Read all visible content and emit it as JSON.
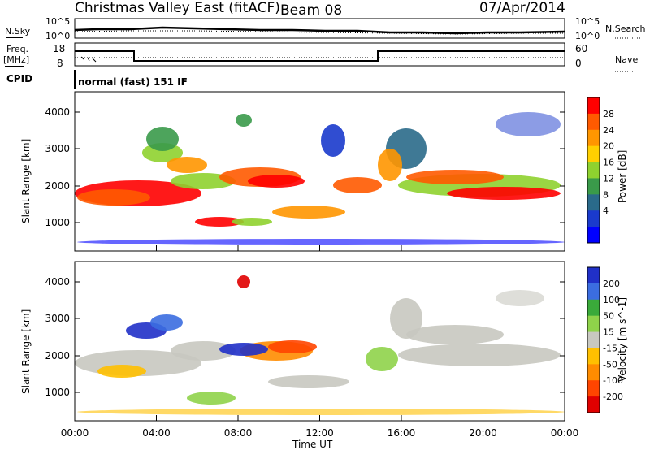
{
  "header": {
    "title": "Christmas Valley East (fitACF)",
    "beam": "Beam 08",
    "date": "07/Apr/2014"
  },
  "top_panels": {
    "nsky_label": "N.Sky",
    "nsearch_label": "N.Search",
    "noise_ticks": [
      "10^5",
      "10^0"
    ],
    "freq_label_1": "Freq.",
    "freq_label_2": "[MHz]",
    "freq_ticks": [
      "18",
      "8"
    ],
    "nave_label": "Nave",
    "nave_ticks": [
      "60",
      "0"
    ],
    "cpid_label": "CPID",
    "cpid_text": "normal (fast) 151 IF"
  },
  "chart_data": [
    {
      "type": "heatmap",
      "name": "power",
      "ylabel": "Slant Range [km]",
      "yticks": [
        "4000",
        "3000",
        "2000",
        "1000"
      ],
      "colorbar_label": "Power [dB]",
      "colorbar_ticks": [
        "28",
        "24",
        "20",
        "16",
        "12",
        "8",
        "4"
      ],
      "colors": [
        "#ff0000",
        "#ff5a00",
        "#ff9600",
        "#ffd000",
        "#8fd22f",
        "#3a9a4a",
        "#2a6a8a",
        "#1a3acc",
        "#0000ff"
      ]
    },
    {
      "type": "heatmap",
      "name": "velocity",
      "ylabel": "Slant Range [km]",
      "yticks": [
        "4000",
        "3000",
        "2000",
        "1000"
      ],
      "colorbar_label": "Velocity [m s^-1]",
      "colorbar_ticks": [
        "200",
        "100",
        "50",
        "15",
        "-15",
        "-50",
        "-100",
        "-200"
      ],
      "colors": [
        "#2030c8",
        "#3b6de0",
        "#3aaa3a",
        "#8fd34a",
        "#c8c8c0",
        "#ffc000",
        "#ff8c00",
        "#ff4500",
        "#e00000"
      ]
    }
  ],
  "xaxis": {
    "label": "Time UT",
    "ticks": [
      "00:00",
      "04:00",
      "08:00",
      "12:00",
      "16:00",
      "20:00",
      "00:00"
    ]
  }
}
